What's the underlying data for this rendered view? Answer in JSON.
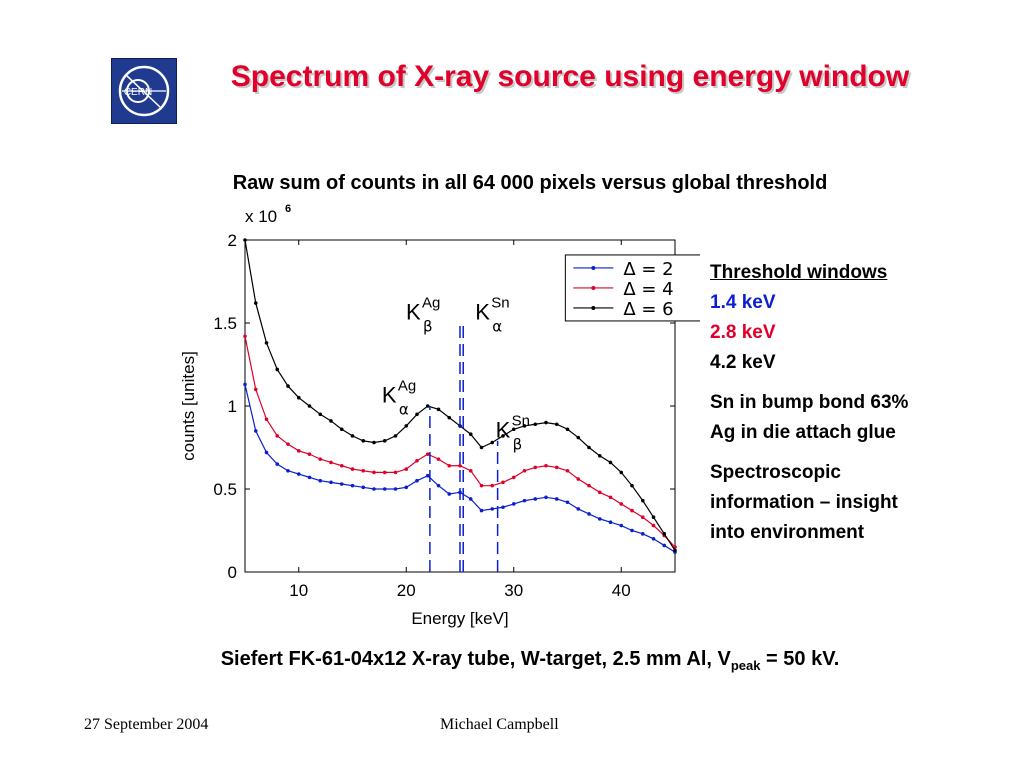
{
  "slide": {
    "title": "Spectrum of X-ray source using energy window",
    "subtitle": "Raw sum of counts in all 64 000 pixels versus global threshold",
    "logo_text": "CERN",
    "logo_icon": "cern-logo-icon",
    "side": {
      "heading": "Threshold windows",
      "w1": "1.4 keV",
      "w2": "2.8 keV",
      "w3": "4.2 keV",
      "p1_line1": "Sn in bump bond 63%",
      "p1_line2": "Ag in die attach glue",
      "p2_line1": "Spectroscopic",
      "p2_line2": "information – insight",
      "p2_line3": "into environment"
    },
    "caption_main": "Siefert FK-61-04x12 X-ray tube, W-target, 2.5 mm Al, V",
    "caption_sub": "peak",
    "caption_end": " =  50 kV.",
    "footer_date": "27 September 2004",
    "footer_author": "Michael Campbell",
    "colors": {
      "title": "#e0002a",
      "blue": "#0b1fd1",
      "red": "#e0002a",
      "black": "#000000"
    }
  },
  "chart_data": {
    "type": "line",
    "xlabel": "Energy [keV]",
    "ylabel": "counts [unites]",
    "y_multiplier_label": "x 10",
    "y_multiplier_exp": "6",
    "xlim": [
      5,
      45
    ],
    "ylim": [
      0,
      2
    ],
    "x_ticks": [
      10,
      20,
      30,
      40
    ],
    "y_ticks": [
      0,
      0.5,
      1,
      1.5,
      2
    ],
    "y_tick_labels": [
      "0",
      "0.5",
      "1",
      "1.5",
      "2"
    ],
    "legend_position": "top-right",
    "grid": false,
    "x": [
      5,
      6,
      7,
      8,
      9,
      10,
      11,
      12,
      13,
      14,
      15,
      16,
      17,
      18,
      19,
      20,
      21,
      22,
      23,
      24,
      25,
      26,
      27,
      28,
      29,
      30,
      31,
      32,
      33,
      34,
      35,
      36,
      37,
      38,
      39,
      40,
      41,
      42,
      43,
      44,
      45
    ],
    "series": [
      {
        "name": "Δ = 2",
        "color": "#0b1fd1",
        "values": [
          1.13,
          0.85,
          0.72,
          0.65,
          0.61,
          0.59,
          0.57,
          0.55,
          0.54,
          0.53,
          0.52,
          0.51,
          0.5,
          0.5,
          0.5,
          0.51,
          0.55,
          0.58,
          0.52,
          0.47,
          0.48,
          0.44,
          0.37,
          0.38,
          0.39,
          0.41,
          0.43,
          0.44,
          0.45,
          0.44,
          0.42,
          0.38,
          0.35,
          0.32,
          0.3,
          0.28,
          0.25,
          0.23,
          0.2,
          0.16,
          0.12
        ]
      },
      {
        "name": "Δ = 4",
        "color": "#e0002a",
        "values": [
          1.42,
          1.1,
          0.92,
          0.82,
          0.77,
          0.73,
          0.71,
          0.68,
          0.66,
          0.64,
          0.62,
          0.61,
          0.6,
          0.6,
          0.6,
          0.62,
          0.67,
          0.71,
          0.68,
          0.64,
          0.64,
          0.61,
          0.52,
          0.52,
          0.54,
          0.57,
          0.61,
          0.63,
          0.64,
          0.63,
          0.61,
          0.56,
          0.52,
          0.48,
          0.45,
          0.41,
          0.37,
          0.33,
          0.28,
          0.22,
          0.15
        ]
      },
      {
        "name": "Δ = 6",
        "color": "#000000",
        "values": [
          2.0,
          1.62,
          1.38,
          1.22,
          1.12,
          1.05,
          1.0,
          0.95,
          0.91,
          0.86,
          0.82,
          0.79,
          0.78,
          0.79,
          0.82,
          0.88,
          0.95,
          1.0,
          0.98,
          0.93,
          0.88,
          0.83,
          0.75,
          0.78,
          0.82,
          0.86,
          0.88,
          0.89,
          0.9,
          0.89,
          0.86,
          0.81,
          0.75,
          0.7,
          0.66,
          0.6,
          0.52,
          0.43,
          0.33,
          0.23,
          0.13
        ]
      }
    ],
    "markers": [
      {
        "x": 22.2,
        "k": "K",
        "sub": "α",
        "sup": "Ag"
      },
      {
        "x": 25.0,
        "k": "K",
        "sub": "β",
        "sup": "Ag"
      },
      {
        "x": 25.3,
        "k": "K",
        "sub": "α",
        "sup": "Sn"
      },
      {
        "x": 28.5,
        "k": "K",
        "sub": "β",
        "sup": "Sn"
      }
    ]
  }
}
